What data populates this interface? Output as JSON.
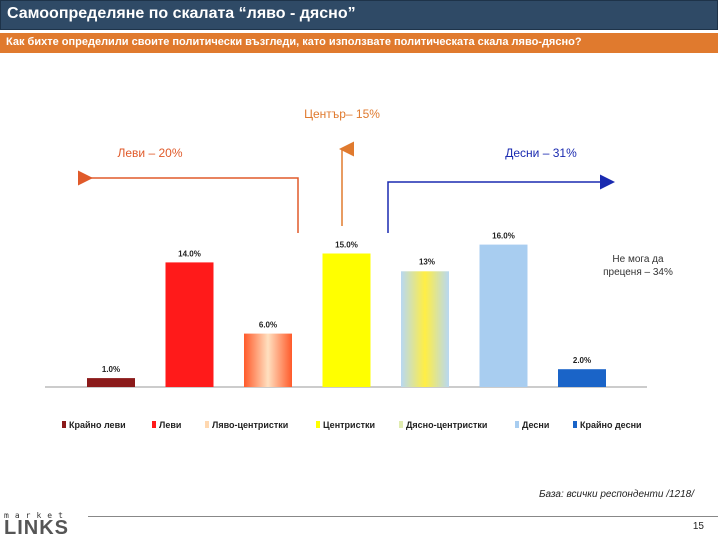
{
  "header": {
    "title": "Самоопределяне по скалата “ляво - дясно”",
    "question": "Как бихте определили своите политически възгледи, като използвате политическата скала ляво-дясно?"
  },
  "chart_data": {
    "type": "bar",
    "categories": [
      "Крайно леви",
      "Леви",
      "Ляво-центристки",
      "Центристки",
      "Дясно-центристки",
      "Десни",
      "Крайно десни"
    ],
    "values": [
      1.0,
      14.0,
      6.0,
      15.0,
      13,
      16.0,
      2.0
    ],
    "value_labels": [
      "1.0%",
      "14.0%",
      "6.0%",
      "15.0%",
      "13%",
      "16.0%",
      "2.0%"
    ],
    "colors": [
      "#8b1a1a",
      "#ff1a1a",
      "#ff8c5a",
      "#ffff00",
      "#cfe9a8",
      "#a8cdf0",
      "#1a64c8"
    ],
    "ylim": [
      0,
      20
    ],
    "legend_position": "bottom",
    "groups": {
      "left": "Леви – 20%",
      "center": "Център– 15%",
      "right": "Десни – 31%",
      "undecided": "Не мога да преценя – 34%"
    },
    "group_colors": {
      "left": "#e05a2a",
      "center": "#e07a2e",
      "right": "#1a2ab0"
    }
  },
  "footer": {
    "base_note": "База: всички респонденти /1218/",
    "page_number": "15",
    "logo_top": "market",
    "logo_main": "LINKS"
  }
}
